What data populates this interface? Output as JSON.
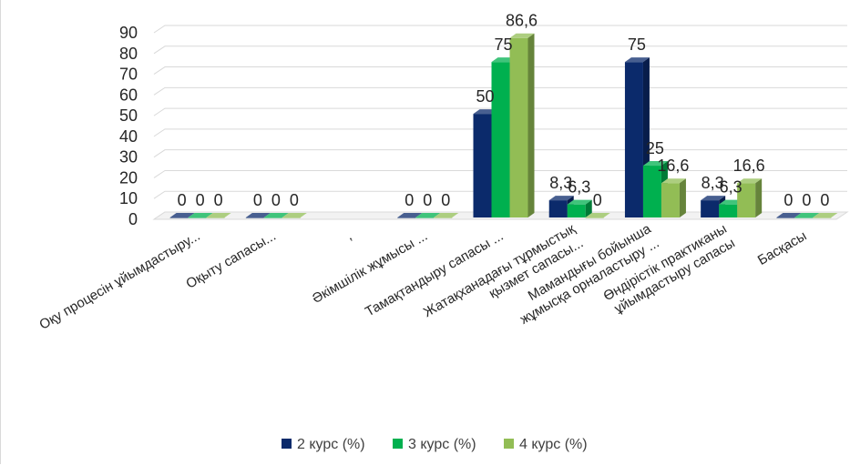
{
  "chart_data": {
    "type": "bar",
    "title": "",
    "xlabel": "",
    "ylabel": "",
    "ylim": [
      0,
      90
    ],
    "yticks": [
      0,
      10,
      20,
      30,
      40,
      50,
      60,
      70,
      80,
      90
    ],
    "grid": true,
    "legend_position": "bottom",
    "categories": [
      [
        "Оқу процесін ұйымдастыру..."
      ],
      [
        "Оқыту сапасы..."
      ],
      [
        ","
      ],
      [
        "Әкімшілік жұмысы ..."
      ],
      [
        "Тамақтандыру сапасы ..."
      ],
      [
        "Жатақханадағы тұрмыстық",
        "қызмет сапасы..."
      ],
      [
        "Мамандығы бойынша",
        "жұмысқа орналастыру ..."
      ],
      [
        "Өндірістік практиканы",
        "ұйымдастыру сапасы"
      ],
      [
        "Басқасы"
      ]
    ],
    "series": [
      {
        "name": "2 курс (%)",
        "color": "#0b2a6b",
        "values": [
          0,
          0,
          null,
          0,
          50,
          8.3,
          75,
          8.3,
          0
        ],
        "labels": [
          "0",
          "0",
          "",
          "0",
          "50",
          "8,3",
          "75",
          "8,3",
          "0"
        ]
      },
      {
        "name": "3 курс (%)",
        "color": "#00b04f",
        "values": [
          0,
          0,
          null,
          0,
          75,
          6.3,
          25,
          6.3,
          0
        ],
        "labels": [
          "0",
          "0",
          "",
          "0",
          "75",
          "6,3",
          "25",
          "6,3",
          "0"
        ]
      },
      {
        "name": "4 курс (%)",
        "color": "#92bd55",
        "values": [
          0,
          0,
          null,
          0,
          86.6,
          0,
          16.6,
          16.6,
          0
        ],
        "labels": [
          "0",
          "0",
          "",
          "0",
          "86,6",
          "0",
          "16,6",
          "16,6",
          "0"
        ]
      }
    ]
  }
}
